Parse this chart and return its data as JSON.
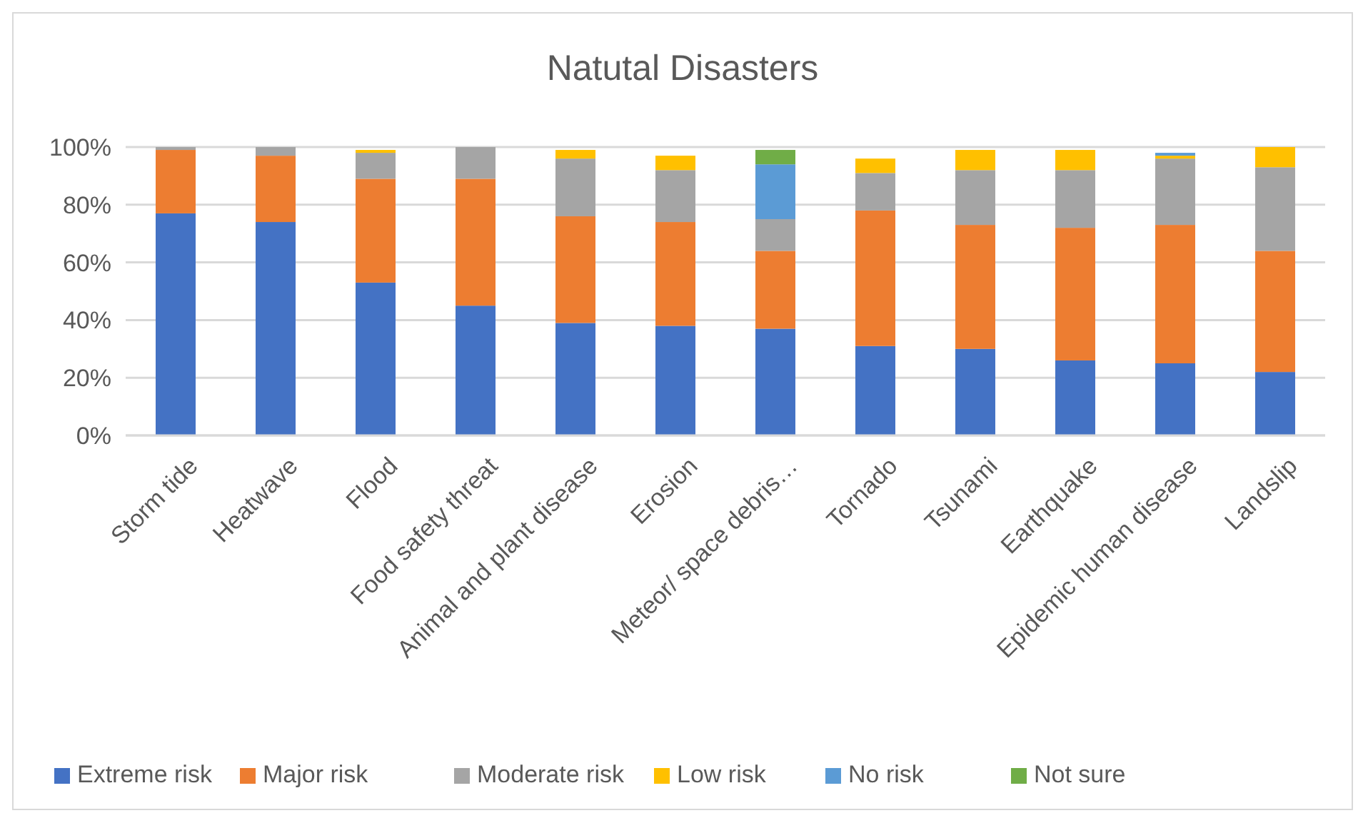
{
  "chart_data": {
    "type": "bar",
    "title": "Natutal Disasters",
    "stacked": true,
    "grid": "y",
    "legend": "bottom",
    "categories": [
      "Storm tide",
      "Heatwave",
      "Flood",
      "Food safety threat",
      "Animal and plant disease",
      "Erosion",
      "Meteor/ space debris…",
      "Tornado",
      "Tsunami",
      "Earthquake",
      "Epidemic human disease",
      "Landslip"
    ],
    "ylim": [
      0,
      100
    ],
    "yticks": [
      {
        "value": 0,
        "label": "0%"
      },
      {
        "value": 20,
        "label": "20%"
      },
      {
        "value": 40,
        "label": "40%"
      },
      {
        "value": 60,
        "label": "60%"
      },
      {
        "value": 80,
        "label": "80%"
      },
      {
        "value": 100,
        "label": "100%"
      }
    ],
    "series": [
      {
        "name": "Extreme risk",
        "color": "#4472c4",
        "values": [
          77,
          74,
          53,
          45,
          39,
          38,
          37,
          31,
          30,
          26,
          25,
          22
        ]
      },
      {
        "name": "Major risk",
        "color": "#ed7d31",
        "values": [
          22,
          23,
          36,
          44,
          37,
          36,
          27,
          47,
          43,
          46,
          48,
          42
        ]
      },
      {
        "name": "Moderate risk",
        "color": "#a5a5a5",
        "values": [
          1,
          3,
          9,
          11,
          20,
          18,
          11,
          13,
          19,
          20,
          23,
          29
        ]
      },
      {
        "name": "Low risk",
        "color": "#ffc000",
        "values": [
          0,
          0,
          1,
          0,
          3,
          5,
          0,
          5,
          7,
          7,
          1,
          7
        ]
      },
      {
        "name": "No risk",
        "color": "#5b9bd5",
        "values": [
          0,
          0,
          0,
          0,
          0,
          0,
          19,
          0,
          0,
          0,
          1,
          0
        ]
      },
      {
        "name": "Not sure",
        "color": "#70ad47",
        "values": [
          0,
          0,
          0,
          0,
          0,
          0,
          5,
          0,
          0,
          0,
          0,
          0
        ]
      }
    ]
  }
}
